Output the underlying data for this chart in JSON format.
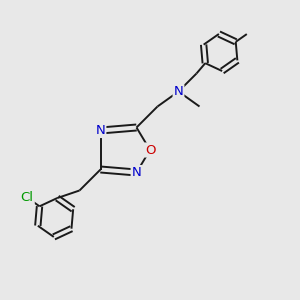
{
  "bg_color": "#e8e8e8",
  "atom_colors": {
    "C": "#000000",
    "N": "#0000cc",
    "O": "#cc0000",
    "Cl": "#009900",
    "H": "#000000"
  },
  "line_color": "#1a1a1a",
  "line_width": 1.4,
  "font_size": 9.5
}
